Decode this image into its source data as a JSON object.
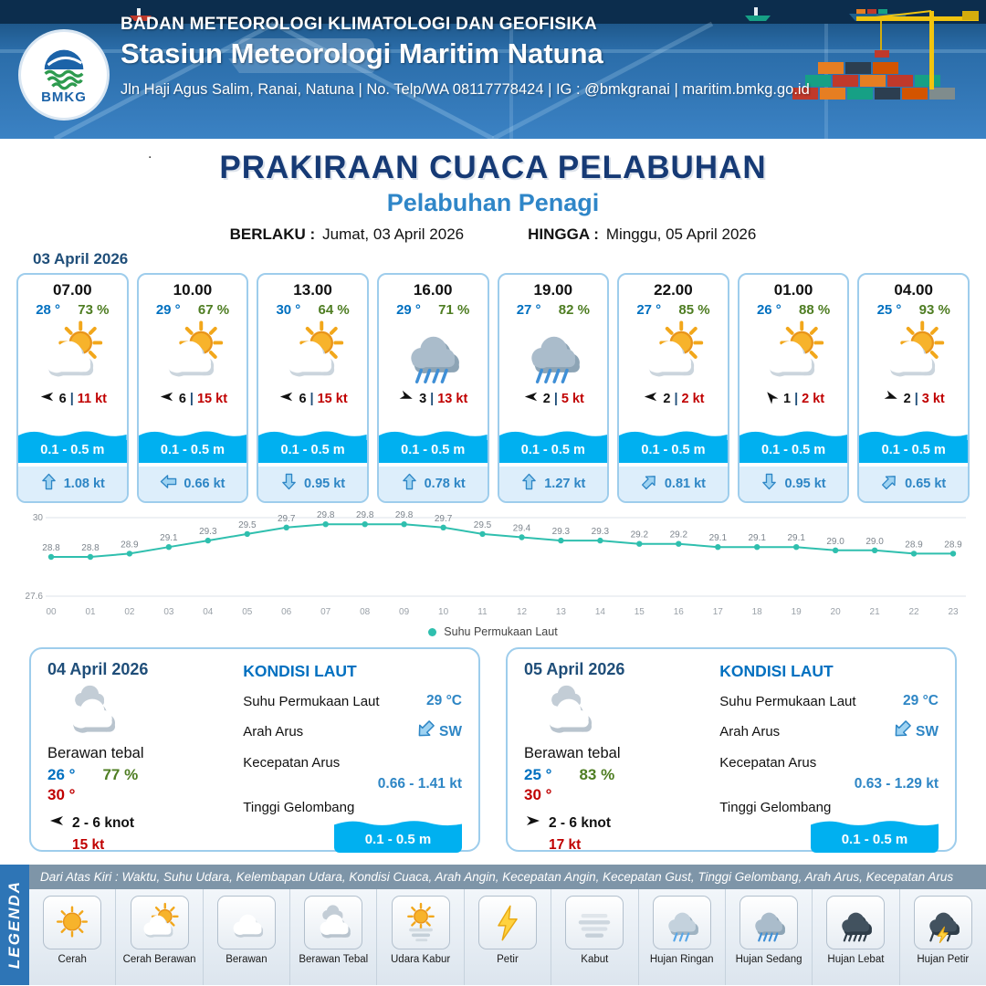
{
  "ui": {
    "pipe": "|",
    "stray_dot": "."
  },
  "header": {
    "logo_text": "BMKG",
    "agency": "BADAN METEOROLOGI KLIMATOLOGI DAN GEOFISIKA",
    "station": "Stasiun Meteorologi Maritim Natuna",
    "contact": "Jln Haji Agus Salim, Ranai, Natuna  | No. Telp/WA 08117778424 | IG : @bmkgranai | maritim.bmkg.go.id"
  },
  "title": {
    "main": "PRAKIRAAN CUACA PELABUHAN",
    "subtitle": "Pelabuhan Penagi",
    "berlaku_label": "BERLAKU :",
    "berlaku_value": "Jumat, 03 April 2026",
    "hingga_label": "HINGGA :",
    "hingga_value": "Minggu, 05 April 2026"
  },
  "forecast_date": "03 April 2026",
  "forecast_cards": [
    {
      "time": "07.00",
      "temp": "28 °",
      "humidity": "73 %",
      "icon": "cerah-berawan",
      "wind_dir_deg": 180,
      "wind_speed": "6",
      "gust": "11 kt",
      "wave": "0.1 - 0.5 m",
      "current_dir_deg": 0,
      "current_speed": "1.08 kt"
    },
    {
      "time": "10.00",
      "temp": "29 °",
      "humidity": "67 %",
      "icon": "cerah-berawan",
      "wind_dir_deg": 180,
      "wind_speed": "6",
      "gust": "15 kt",
      "wave": "0.1 - 0.5 m",
      "current_dir_deg": -90,
      "current_speed": "0.66 kt"
    },
    {
      "time": "13.00",
      "temp": "30 °",
      "humidity": "64 %",
      "icon": "cerah-berawan",
      "wind_dir_deg": 180,
      "wind_speed": "6",
      "gust": "15 kt",
      "wave": "0.1 - 0.5 m",
      "current_dir_deg": 180,
      "current_speed": "0.95 kt"
    },
    {
      "time": "16.00",
      "temp": "29 °",
      "humidity": "71 %",
      "icon": "hujan-sedang",
      "wind_dir_deg": 20,
      "wind_speed": "3",
      "gust": "13 kt",
      "wave": "0.1 - 0.5 m",
      "current_dir_deg": 0,
      "current_speed": "0.78 kt"
    },
    {
      "time": "19.00",
      "temp": "27 °",
      "humidity": "82 %",
      "icon": "hujan-sedang",
      "wind_dir_deg": 180,
      "wind_speed": "2",
      "gust": "5 kt",
      "wave": "0.1 - 0.5 m",
      "current_dir_deg": 0,
      "current_speed": "1.27 kt"
    },
    {
      "time": "22.00",
      "temp": "27 °",
      "humidity": "85 %",
      "icon": "cerah-berawan",
      "wind_dir_deg": 180,
      "wind_speed": "2",
      "gust": "2 kt",
      "wave": "0.1 - 0.5 m",
      "current_dir_deg": 45,
      "current_speed": "0.81 kt"
    },
    {
      "time": "01.00",
      "temp": "26 °",
      "humidity": "88 %",
      "icon": "cerah-berawan",
      "wind_dir_deg": 230,
      "wind_speed": "1",
      "gust": "2 kt",
      "wave": "0.1 - 0.5 m",
      "current_dir_deg": 180,
      "current_speed": "0.95 kt"
    },
    {
      "time": "04.00",
      "temp": "25 °",
      "humidity": "93 %",
      "icon": "cerah-berawan",
      "wind_dir_deg": 20,
      "wind_speed": "2",
      "gust": "3 kt",
      "wave": "0.1 - 0.5 m",
      "current_dir_deg": 45,
      "current_speed": "0.65 kt"
    }
  ],
  "chart_data": {
    "type": "line",
    "legend_label": "Suhu Permukaan Laut",
    "x": [
      "00",
      "01",
      "02",
      "03",
      "04",
      "05",
      "06",
      "07",
      "08",
      "09",
      "10",
      "11",
      "12",
      "13",
      "14",
      "15",
      "16",
      "17",
      "18",
      "19",
      "20",
      "21",
      "22",
      "23"
    ],
    "values": [
      28.8,
      28.8,
      28.9,
      29.1,
      29.3,
      29.5,
      29.7,
      29.8,
      29.8,
      29.8,
      29.7,
      29.5,
      29.4,
      29.3,
      29.3,
      29.2,
      29.2,
      29.1,
      29.1,
      29.1,
      29.0,
      29.0,
      28.9,
      28.9
    ],
    "ylim": [
      27.6,
      30
    ],
    "line_color": "#2fbfae",
    "grid": true,
    "legend_position": "bottom"
  },
  "day_cards": [
    {
      "date": "04 April 2026",
      "icon": "berawan-tebal",
      "description": "Berawan tebal",
      "temp_min": "26 °",
      "humidity": "77 %",
      "temp_max": "30 °",
      "wind_dir_deg": 180,
      "wind_range": "2 - 6 knot",
      "gust": "15 kt",
      "sea": {
        "heading": "KONDISI LAUT",
        "sst_label": "Suhu Permukaan Laut",
        "sst_value": "29 °C",
        "current_dir_label": "Arah Arus",
        "current_dir_value": "SW",
        "current_dir_deg": 225,
        "current_speed_label": "Kecepatan Arus",
        "current_speed_value": "0.66 - 1.41 kt",
        "wave_label": "Tinggi Gelombang",
        "wave_value": "0.1 - 0.5 m"
      }
    },
    {
      "date": "05 April 2026",
      "icon": "berawan-tebal",
      "description": "Berawan tebal",
      "temp_min": "25 °",
      "humidity": "83 %",
      "temp_max": "30 °",
      "wind_dir_deg": 0,
      "wind_range": "2 - 6 knot",
      "gust": "17 kt",
      "sea": {
        "heading": "KONDISI LAUT",
        "sst_label": "Suhu Permukaan Laut",
        "sst_value": "29 °C",
        "current_dir_label": "Arah Arus",
        "current_dir_value": "SW",
        "current_dir_deg": 225,
        "current_speed_label": "Kecepatan Arus",
        "current_speed_value": "0.63 - 1.29 kt",
        "wave_label": "Tinggi Gelombang",
        "wave_value": "0.1 - 0.5 m"
      }
    }
  ],
  "legend": {
    "ribbon": "LEGENDA",
    "description": "Dari Atas Kiri : Waktu, Suhu Udara, Kelembapan Udara, Kondisi Cuaca, Arah Angin, Kecepatan Angin, Kecepatan Gust, Tinggi Gelombang, Arah Arus, Kecepatan Arus",
    "items": [
      {
        "label": "Cerah",
        "icon": "cerah"
      },
      {
        "label": "Cerah Berawan",
        "icon": "cerah-berawan"
      },
      {
        "label": "Berawan",
        "icon": "berawan"
      },
      {
        "label": "Berawan Tebal",
        "icon": "berawan-tebal"
      },
      {
        "label": "Udara Kabur",
        "icon": "udara-kabur"
      },
      {
        "label": "Petir",
        "icon": "petir"
      },
      {
        "label": "Kabut",
        "icon": "kabut"
      },
      {
        "label": "Hujan Ringan",
        "icon": "hujan-ringan"
      },
      {
        "label": "Hujan Sedang",
        "icon": "hujan-sedang"
      },
      {
        "label": "Hujan Lebat",
        "icon": "hujan-lebat"
      },
      {
        "label": "Hujan Petir",
        "icon": "hujan-petir"
      }
    ]
  },
  "colors": {
    "header_blue": "#2a6ca8",
    "title_navy": "#163a75",
    "subtitle_blue": "#2f86c8",
    "temp_blue": "#0070c0",
    "humidity_green": "#4e7d22",
    "gust_red": "#c00000",
    "wave_cyan": "#00b0f0",
    "current_blue": "#2e86c5",
    "chart_teal": "#2fbfae",
    "legend_ribbon_blue": "#2e75b6"
  }
}
